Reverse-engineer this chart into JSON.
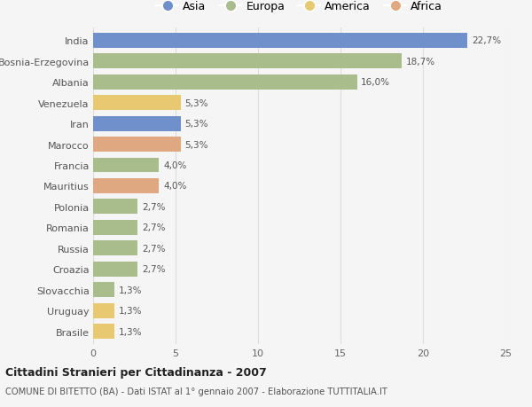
{
  "countries": [
    "India",
    "Bosnia-Erzegovina",
    "Albania",
    "Venezuela",
    "Iran",
    "Marocco",
    "Francia",
    "Mauritius",
    "Polonia",
    "Romania",
    "Russia",
    "Croazia",
    "Slovacchia",
    "Uruguay",
    "Brasile"
  ],
  "values": [
    22.7,
    18.7,
    16.0,
    5.3,
    5.3,
    5.3,
    4.0,
    4.0,
    2.7,
    2.7,
    2.7,
    2.7,
    1.3,
    1.3,
    1.3
  ],
  "continents": [
    "Asia",
    "Europa",
    "Europa",
    "America",
    "Asia",
    "Africa",
    "Europa",
    "Africa",
    "Europa",
    "Europa",
    "Europa",
    "Europa",
    "Europa",
    "America",
    "America"
  ],
  "labels": [
    "22,7%",
    "18,7%",
    "16,0%",
    "5,3%",
    "5,3%",
    "5,3%",
    "4,0%",
    "4,0%",
    "2,7%",
    "2,7%",
    "2,7%",
    "2,7%",
    "1,3%",
    "1,3%",
    "1,3%"
  ],
  "colors": {
    "Asia": "#7090cc",
    "Europa": "#a8bc8c",
    "America": "#e8c870",
    "Africa": "#e0a880"
  },
  "legend_order": [
    "Asia",
    "Europa",
    "America",
    "Africa"
  ],
  "title": "Cittadini Stranieri per Cittadinanza - 2007",
  "subtitle": "COMUNE DI BITETTO (BA) - Dati ISTAT al 1° gennaio 2007 - Elaborazione TUTTITALIA.IT",
  "xlim": [
    0,
    25
  ],
  "xticks": [
    0,
    5,
    10,
    15,
    20,
    25
  ],
  "background_color": "#f5f5f5",
  "grid_color": "#dddddd"
}
